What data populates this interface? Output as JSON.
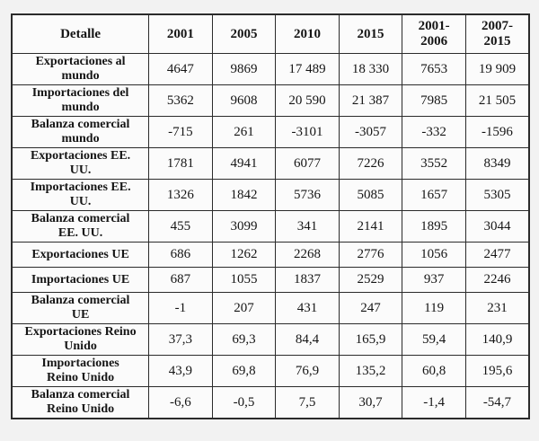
{
  "colors": {
    "page_background": "#f2f2f2",
    "cell_background": "#fbfbfb",
    "border": "#2b2b2b",
    "text": "#151515"
  },
  "table": {
    "columns": [
      "Detalle",
      "2001",
      "2005",
      "2010",
      "2015",
      "2001-\n2006",
      "2007-\n2015"
    ],
    "rows": [
      {
        "label": "Exportaciones al\nmundo",
        "values": [
          "4647",
          "9869",
          "17 489",
          "18 330",
          "7653",
          "19 909"
        ]
      },
      {
        "label": "Importaciones del\nmundo",
        "values": [
          "5362",
          "9608",
          "20 590",
          "21 387",
          "7985",
          "21 505"
        ]
      },
      {
        "label": "Balanza comercial\nmundo",
        "values": [
          "-715",
          "261",
          "-3101",
          "-3057",
          "-332",
          "-1596"
        ]
      },
      {
        "label": "Exportaciones EE.\nUU.",
        "values": [
          "1781",
          "4941",
          "6077",
          "7226",
          "3552",
          "8349"
        ]
      },
      {
        "label": "Importaciones EE.\nUU.",
        "values": [
          "1326",
          "1842",
          "5736",
          "5085",
          "1657",
          "5305"
        ]
      },
      {
        "label": "Balanza comercial\nEE. UU.",
        "values": [
          "455",
          "3099",
          "341",
          "2141",
          "1895",
          "3044"
        ]
      },
      {
        "label": "Exportaciones UE",
        "values": [
          "686",
          "1262",
          "2268",
          "2776",
          "1056",
          "2477"
        ]
      },
      {
        "label": "Importaciones UE",
        "values": [
          "687",
          "1055",
          "1837",
          "2529",
          "937",
          "2246"
        ]
      },
      {
        "label": "Balanza comercial\nUE",
        "values": [
          "-1",
          "207",
          "431",
          "247",
          "119",
          "231"
        ]
      },
      {
        "label": "Exportaciones Reino\nUnido",
        "values": [
          "37,3",
          "69,3",
          "84,4",
          "165,9",
          "59,4",
          "140,9"
        ]
      },
      {
        "label": "Importaciones\nReino Unido",
        "values": [
          "43,9",
          "69,8",
          "76,9",
          "135,2",
          "60,8",
          "195,6"
        ]
      },
      {
        "label": "Balanza comercial\nReino Unido",
        "values": [
          "-6,6",
          "-0,5",
          "7,5",
          "30,7",
          "-1,4",
          "-54,7"
        ]
      }
    ]
  },
  "chart_data": {
    "type": "table",
    "title": "Detalle",
    "categories": [
      "2001",
      "2005",
      "2010",
      "2015",
      "2001-2006",
      "2007-2015"
    ],
    "series": [
      {
        "name": "Exportaciones al mundo",
        "values": [
          4647,
          9869,
          17489,
          18330,
          7653,
          19909
        ]
      },
      {
        "name": "Importaciones del mundo",
        "values": [
          5362,
          9608,
          20590,
          21387,
          7985,
          21505
        ]
      },
      {
        "name": "Balanza comercial mundo",
        "values": [
          -715,
          261,
          -3101,
          -3057,
          -332,
          -1596
        ]
      },
      {
        "name": "Exportaciones EE. UU.",
        "values": [
          1781,
          4941,
          6077,
          7226,
          3552,
          8349
        ]
      },
      {
        "name": "Importaciones EE. UU.",
        "values": [
          1326,
          1842,
          5736,
          5085,
          1657,
          5305
        ]
      },
      {
        "name": "Balanza comercial EE. UU.",
        "values": [
          455,
          3099,
          341,
          2141,
          1895,
          3044
        ]
      },
      {
        "name": "Exportaciones UE",
        "values": [
          686,
          1262,
          2268,
          2776,
          1056,
          2477
        ]
      },
      {
        "name": "Importaciones UE",
        "values": [
          687,
          1055,
          1837,
          2529,
          937,
          2246
        ]
      },
      {
        "name": "Balanza comercial UE",
        "values": [
          -1,
          207,
          431,
          247,
          119,
          231
        ]
      },
      {
        "name": "Exportaciones Reino Unido",
        "values": [
          37.3,
          69.3,
          84.4,
          165.9,
          59.4,
          140.9
        ]
      },
      {
        "name": "Importaciones Reino Unido",
        "values": [
          43.9,
          69.8,
          76.9,
          135.2,
          60.8,
          195.6
        ]
      },
      {
        "name": "Balanza comercial Reino Unido",
        "values": [
          -6.6,
          -0.5,
          7.5,
          30.7,
          -1.4,
          -54.7
        ]
      }
    ]
  }
}
